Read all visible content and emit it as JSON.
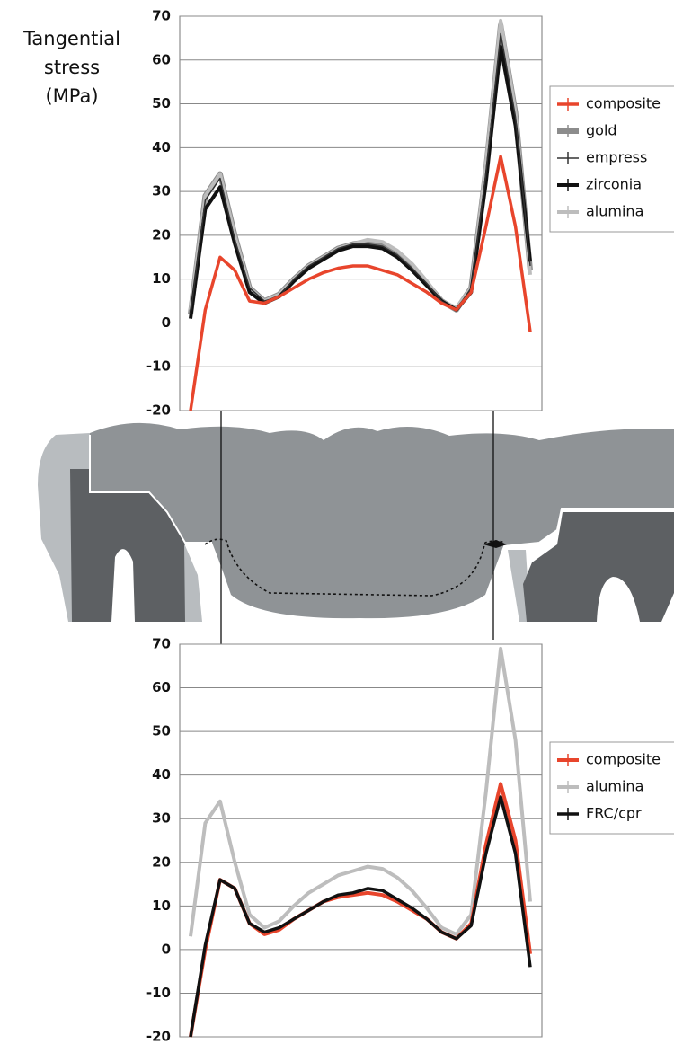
{
  "chart_data": [
    {
      "type": "line",
      "y_label": [
        "Tangential",
        "stress",
        "(MPa)"
      ],
      "categories": [
        null,
        null,
        null,
        null,
        null,
        null,
        null,
        null,
        null,
        null,
        null,
        null,
        null,
        null,
        null,
        null,
        null,
        null,
        null,
        null,
        null,
        null,
        null,
        null
      ],
      "ylim": [
        -20,
        70
      ],
      "yticks": [
        -20,
        -10,
        0,
        10,
        20,
        30,
        40,
        50,
        60,
        70
      ],
      "grid": true,
      "legend": "right",
      "series": [
        {
          "name": "gold",
          "color": "#8c8c8c",
          "width": 6,
          "values": [
            2,
            29,
            34,
            20,
            8,
            5,
            6.5,
            10,
            13,
            15,
            17,
            18,
            18.5,
            18,
            16,
            13,
            9,
            5,
            3,
            8,
            35,
            68,
            48,
            12
          ]
        },
        {
          "name": "alumina",
          "color": "#bdbdbd",
          "width": 4,
          "values": [
            3,
            29,
            34,
            20,
            8,
            5,
            6.5,
            10,
            13,
            15,
            17,
            18,
            19,
            18.5,
            16.5,
            13.5,
            9.5,
            5,
            3.5,
            8,
            36,
            69,
            48,
            11
          ]
        },
        {
          "name": "zirconia",
          "color": "#111111",
          "width": 4,
          "values": [
            1,
            26,
            31,
            18,
            7,
            4.5,
            6,
            9.5,
            12.5,
            14.5,
            16.5,
            17.5,
            17.5,
            17,
            15,
            12,
            8.5,
            5,
            3,
            7,
            32,
            63,
            45,
            14
          ]
        },
        {
          "name": "empress",
          "color": "#333333",
          "width": 1.5,
          "values": [
            2,
            28,
            33,
            19,
            8,
            5,
            6,
            10,
            13,
            15,
            17,
            18,
            18,
            17.5,
            15.5,
            12.5,
            9,
            5,
            3,
            8,
            34,
            66,
            47,
            13
          ]
        },
        {
          "name": "composite",
          "color": "#e8452c",
          "width": 3.5,
          "values": [
            -20,
            3,
            15,
            12,
            5,
            4.5,
            6,
            8,
            10,
            11.5,
            12.5,
            13,
            13,
            12,
            11,
            9,
            7,
            4.5,
            3,
            7,
            22,
            38,
            22,
            -2
          ]
        }
      ],
      "legend_order": [
        "composite",
        "gold",
        "empress",
        "zirconia",
        "alumina"
      ]
    },
    {
      "type": "line",
      "categories": [
        null,
        null,
        null,
        null,
        null,
        null,
        null,
        null,
        null,
        null,
        null,
        null,
        null,
        null,
        null,
        null,
        null,
        null,
        null,
        null,
        null,
        null,
        null,
        null
      ],
      "ylim": [
        -20,
        70
      ],
      "yticks": [
        -20,
        -10,
        0,
        10,
        20,
        30,
        40,
        50,
        60,
        70
      ],
      "grid": true,
      "legend": "right",
      "series": [
        {
          "name": "alumina",
          "color": "#bdbdbd",
          "width": 4,
          "values": [
            3,
            29,
            34,
            20,
            8,
            5,
            6.5,
            10,
            13,
            15,
            17,
            18,
            19,
            18.5,
            16.5,
            13.5,
            9.5,
            5,
            3.5,
            8,
            36,
            69,
            48,
            11
          ]
        },
        {
          "name": "composite",
          "color": "#e8452c",
          "width": 4,
          "values": [
            -20,
            0,
            16,
            14,
            6,
            3.5,
            4.5,
            7,
            9,
            11,
            12,
            12.5,
            13,
            12.5,
            11,
            9,
            7,
            4,
            2.5,
            6,
            24,
            38,
            25,
            -1
          ]
        },
        {
          "name": "FRC/cpr",
          "color": "#111111",
          "width": 3.5,
          "values": [
            -20,
            1,
            16,
            14,
            6,
            4,
            5,
            7,
            9,
            11,
            12.5,
            13,
            14,
            13.5,
            11.5,
            9.5,
            7,
            4,
            2.5,
            5.5,
            22,
            35,
            22,
            -4
          ]
        }
      ],
      "legend_order": [
        "composite",
        "alumina",
        "FRC/cpr"
      ]
    }
  ]
}
